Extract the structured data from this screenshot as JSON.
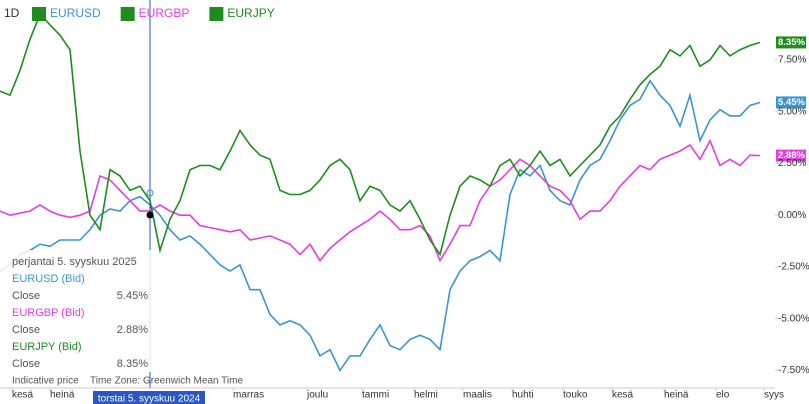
{
  "chart_data": {
    "type": "line",
    "interval": "1D",
    "xlim": [
      0,
      77.5
    ],
    "ylim": [
      -8.35,
      10.4
    ],
    "yticks": [
      {
        "value": 7.5,
        "label": "7.50%"
      },
      {
        "value": 5,
        "label": "5.00%"
      },
      {
        "value": 2.5,
        "label": "2.50%"
      },
      {
        "value": 0,
        "label": "0.00%"
      },
      {
        "value": -2.5,
        "label": "-2.50%"
      },
      {
        "value": -5,
        "label": "-5.00%"
      },
      {
        "value": -7.5,
        "label": "-7.50%"
      }
    ],
    "xticks": [
      {
        "value": 1.2,
        "label": "kesä"
      },
      {
        "value": 5,
        "label": "heinä"
      },
      {
        "value": 23.3,
        "label": "marras"
      },
      {
        "value": 30.7,
        "label": "joulu"
      },
      {
        "value": 36.2,
        "label": "tammi"
      },
      {
        "value": 41.4,
        "label": "helmi"
      },
      {
        "value": 46.3,
        "label": "maalis"
      },
      {
        "value": 51.2,
        "label": "huhti"
      },
      {
        "value": 56.3,
        "label": "touko"
      },
      {
        "value": 61.2,
        "label": "kesä"
      },
      {
        "value": 66.4,
        "label": "heinä"
      },
      {
        "value": 71.6,
        "label": "elo"
      },
      {
        "value": 76.4,
        "label": "syys"
      }
    ],
    "series": [
      {
        "name": "EURUSD",
        "color": "#3d95d0",
        "last_value_label": "5.45%",
        "values": [
          -2.7,
          -2.4,
          -1.9,
          -1.7,
          -1.4,
          -1.5,
          -1.2,
          -1.2,
          -1.2,
          -0.7,
          0.0,
          0.3,
          0.2,
          0.7,
          0.9,
          0.5,
          0.0,
          -0.7,
          -1.2,
          -1.0,
          -1.4,
          -1.9,
          -2.4,
          -2.7,
          -2.4,
          -3.6,
          -3.6,
          -4.8,
          -5.3,
          -5.1,
          -5.3,
          -5.8,
          -6.8,
          -6.5,
          -7.5,
          -6.8,
          -6.8,
          -6.0,
          -5.3,
          -6.3,
          -6.5,
          -6.0,
          -5.8,
          -6.0,
          -6.5,
          -3.6,
          -2.7,
          -2.2,
          -2.0,
          -1.7,
          -2.2,
          1.0,
          2.2,
          1.9,
          2.4,
          1.2,
          0.7,
          0.5,
          1.7,
          2.4,
          2.7,
          3.6,
          4.6,
          5.3,
          5.6,
          6.5,
          5.8,
          5.3,
          4.3,
          5.8,
          3.6,
          4.6,
          5.1,
          4.8,
          4.8,
          5.3,
          5.45
        ]
      },
      {
        "name": "EURGBP",
        "color": "#e23fe0",
        "last_value_label": "2.88%",
        "values": [
          0.2,
          0.0,
          0.1,
          0.2,
          0.5,
          0.2,
          0.0,
          -0.1,
          0.0,
          0.2,
          1.9,
          1.7,
          1.2,
          0.7,
          0.2,
          0.2,
          0.5,
          0.2,
          0.0,
          0.0,
          -0.5,
          -0.6,
          -0.7,
          -0.8,
          -0.7,
          -1.2,
          -1.1,
          -1.0,
          -1.2,
          -1.4,
          -1.9,
          -1.4,
          -2.2,
          -1.6,
          -1.2,
          -0.8,
          -0.5,
          -0.2,
          0.2,
          -0.2,
          -0.7,
          -0.7,
          -0.5,
          -1.0,
          -2.2,
          -1.4,
          -0.5,
          -0.5,
          0.7,
          1.4,
          1.7,
          2.2,
          2.7,
          2.4,
          1.9,
          1.4,
          1.2,
          0.7,
          -0.2,
          0.2,
          0.2,
          0.7,
          1.4,
          1.9,
          2.4,
          2.2,
          2.7,
          2.9,
          3.1,
          3.4,
          2.7,
          3.6,
          2.4,
          2.7,
          2.4,
          2.9,
          2.88
        ]
      },
      {
        "name": "EURJPY",
        "color": "#1e8c1e",
        "last_value_label": "8.35%",
        "values": [
          6.0,
          5.8,
          7.0,
          8.5,
          9.7,
          9.2,
          8.7,
          8.0,
          3.1,
          0.0,
          -0.7,
          2.2,
          1.9,
          1.2,
          1.4,
          0.7,
          -1.7,
          -0.2,
          0.7,
          2.2,
          2.4,
          2.4,
          2.2,
          3.1,
          4.1,
          3.4,
          2.9,
          2.7,
          1.2,
          1.0,
          1.0,
          1.2,
          1.7,
          2.4,
          2.7,
          2.2,
          0.7,
          1.4,
          1.2,
          0.5,
          0.2,
          0.7,
          -0.2,
          -1.2,
          -1.9,
          0.0,
          1.4,
          1.9,
          1.7,
          1.4,
          2.4,
          2.7,
          1.9,
          2.4,
          3.1,
          2.4,
          2.7,
          1.9,
          2.4,
          2.9,
          3.4,
          4.3,
          4.8,
          5.6,
          6.3,
          6.8,
          7.2,
          8.0,
          7.7,
          8.2,
          7.2,
          7.5,
          8.2,
          7.7,
          8.0,
          8.2,
          8.35
        ]
      }
    ],
    "crosshair_label": "torstai 5. syyskuu 2024",
    "tooltip": {
      "date": "perjantai 5. syyskuu 2025",
      "rows": [
        {
          "name": "EURUSD (Bid)",
          "field": "Close",
          "value": "5.45%"
        },
        {
          "name": "EURGBP (Bid)",
          "field": "Close",
          "value": "2.88%"
        },
        {
          "name": "EURJPY (Bid)",
          "field": "Close",
          "value": "8.35%"
        }
      ]
    },
    "footer": {
      "note": "Indicative price",
      "timezone": "Time Zone: Greenwich Mean Time"
    }
  }
}
